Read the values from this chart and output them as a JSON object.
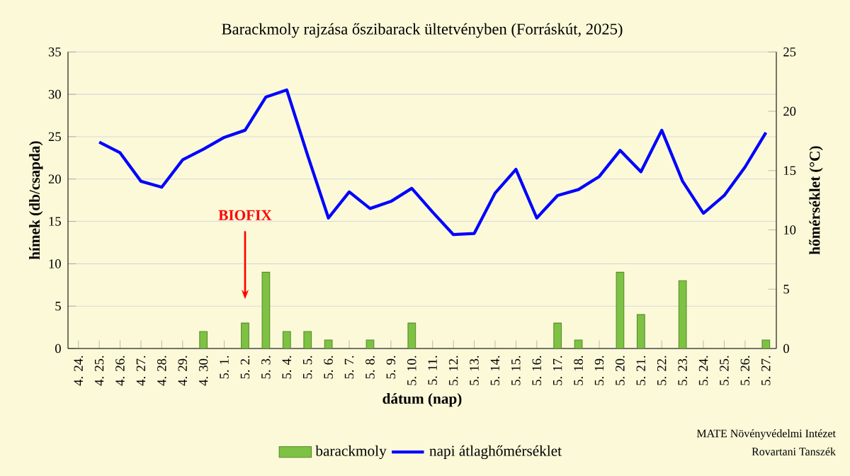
{
  "chart_data": {
    "type": "bar",
    "title": "Barackmoly rajzása őszibarack ültetvényben (Forráskút, 2025)",
    "xlabel": "dátum (nap)",
    "ylabel": "hímek (db/csapda)",
    "y2label": "hőmérséklet (°C)",
    "categories": [
      "4. 24.",
      "4. 25.",
      "4. 26.",
      "4. 27.",
      "4. 28.",
      "4. 29.",
      "4. 30.",
      "5. 1.",
      "5. 2.",
      "5. 3.",
      "5. 4.",
      "5. 5.",
      "5. 6.",
      "5. 7.",
      "5. 8.",
      "5. 9.",
      "5. 10.",
      "5. 11.",
      "5. 12.",
      "5. 13.",
      "5. 14.",
      "5. 15.",
      "5. 16.",
      "5. 17.",
      "5. 18.",
      "5. 19.",
      "5. 20.",
      "5. 21.",
      "5. 22.",
      "5. 23.",
      "5. 24.",
      "5. 25.",
      "5. 26.",
      "5. 27."
    ],
    "series": [
      {
        "name": "barackmoly",
        "color": "#7dc242",
        "values": [
          0,
          0,
          0,
          0,
          0,
          0,
          2,
          0,
          3,
          9,
          2,
          2,
          1,
          0,
          1,
          0,
          3,
          0,
          0,
          0,
          0,
          0,
          0,
          3,
          1,
          0,
          9,
          4,
          0,
          8,
          0,
          0,
          0,
          1
        ]
      },
      {
        "name": "napi átlaghőmérséklet",
        "type": "line",
        "axis": "y2",
        "color": "#0000ff",
        "values": [
          null,
          17.4,
          16.5,
          14.1,
          13.6,
          15.9,
          16.8,
          17.8,
          18.4,
          21.2,
          21.8,
          16.3,
          11.0,
          13.2,
          11.8,
          12.4,
          13.5,
          11.5,
          9.6,
          9.7,
          13.1,
          15.1,
          11.0,
          12.9,
          13.4,
          14.5,
          16.7,
          14.9,
          18.4,
          14.1,
          11.4,
          12.9,
          15.3,
          18.2
        ]
      }
    ],
    "ylim": [
      0,
      35
    ],
    "yticks": [
      0,
      5,
      10,
      15,
      20,
      25,
      30,
      35
    ],
    "y2lim": [
      0,
      25
    ],
    "y2ticks": [
      0,
      5,
      10,
      15,
      20,
      25
    ],
    "grid": "y",
    "legend": "bottom",
    "annotations": [
      "BIOFIX",
      "MATE Növényvédelmi Intézet",
      "Rovartani Tanszék"
    ]
  }
}
